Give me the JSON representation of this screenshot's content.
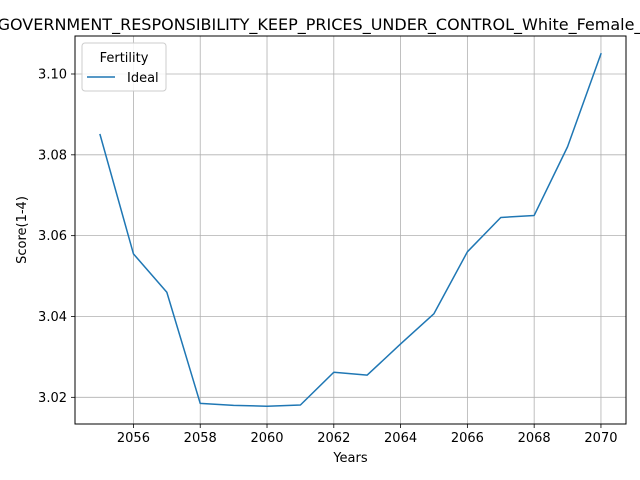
{
  "chart_data": {
    "type": "line",
    "title": "GOVERNMENT_RESPONSIBILITY_KEEP_PRICES_UNDER_CONTROL_White_Female_",
    "xlabel": "Years",
    "ylabel": "Score(1-4)",
    "x": [
      2055,
      2056,
      2057,
      2058,
      2059,
      2060,
      2061,
      2062,
      2063,
      2064,
      2065,
      2066,
      2067,
      2068,
      2069,
      2070
    ],
    "xlim": [
      2054.25,
      2070.75
    ],
    "ylim": [
      3.0134,
      3.1094
    ],
    "x_ticks": [
      2056,
      2058,
      2060,
      2062,
      2064,
      2066,
      2068,
      2070
    ],
    "x_tick_labels": [
      "2056",
      "2058",
      "2060",
      "2062",
      "2064",
      "2066",
      "2068",
      "2070"
    ],
    "y_ticks": [
      3.02,
      3.04,
      3.06,
      3.08,
      3.1
    ],
    "y_tick_labels": [
      "3.02",
      "3.04",
      "3.06",
      "3.08",
      "3.10"
    ],
    "grid": true,
    "legend": {
      "title": "Fertility",
      "position": "top-left"
    },
    "series": [
      {
        "name": "Ideal",
        "color": "#1f77b4",
        "values": [
          3.085,
          3.0555,
          3.046,
          3.0185,
          3.018,
          3.0178,
          3.0181,
          3.0262,
          3.0255,
          3.0332,
          3.0407,
          3.056,
          3.0645,
          3.065,
          3.082,
          3.105
        ]
      }
    ]
  }
}
